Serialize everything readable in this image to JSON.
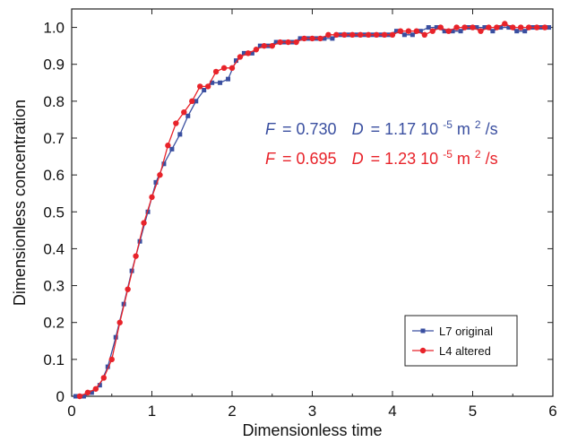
{
  "chart_data": {
    "type": "line",
    "xlabel": "Dimensionless time",
    "ylabel": "Dimensionless concentration",
    "xlim": [
      0,
      6
    ],
    "ylim": [
      0,
      1.05
    ],
    "xticks": [
      "0",
      "1",
      "2",
      "3",
      "4",
      "5",
      "6"
    ],
    "yticks": [
      "0",
      "0.1",
      "0.2",
      "0.3",
      "0.4",
      "0.5",
      "0.6",
      "0.7",
      "0.8",
      "0.9",
      "1.0"
    ],
    "grid": false,
    "legend_position": "bottom-right",
    "annotations": [
      {
        "F_label": "F",
        "F_value": "= 0.730",
        "D_label": "D",
        "D_value": "= 1.17 10",
        "exponent": "-5",
        "unit_a": " m",
        "unit_exp": "2",
        "unit_b": "/s",
        "color": "#3a4fa0"
      },
      {
        "F_label": "F",
        "F_value": "= 0.695",
        "D_label": "D",
        "D_value": "= 1.23 10",
        "exponent": "-5",
        "unit_a": " m",
        "unit_exp": "2",
        "unit_b": "/s",
        "color": "#e8232a"
      }
    ],
    "series": [
      {
        "name": "L7 original",
        "color": "#3a4fa0",
        "marker": "square",
        "x": [
          0.05,
          0.15,
          0.25,
          0.35,
          0.45,
          0.55,
          0.65,
          0.75,
          0.85,
          0.95,
          1.05,
          1.15,
          1.25,
          1.35,
          1.45,
          1.55,
          1.65,
          1.75,
          1.85,
          1.95,
          2.05,
          2.15,
          2.25,
          2.35,
          2.45,
          2.55,
          2.65,
          2.75,
          2.85,
          2.95,
          3.05,
          3.15,
          3.25,
          3.35,
          3.45,
          3.55,
          3.65,
          3.75,
          3.85,
          3.95,
          4.05,
          4.15,
          4.25,
          4.35,
          4.45,
          4.55,
          4.65,
          4.75,
          4.85,
          4.95,
          5.05,
          5.15,
          5.25,
          5.35,
          5.45,
          5.55,
          5.65,
          5.75,
          5.85,
          5.95
        ],
        "y": [
          0.0,
          0.0,
          0.01,
          0.03,
          0.08,
          0.16,
          0.25,
          0.34,
          0.42,
          0.5,
          0.58,
          0.63,
          0.67,
          0.71,
          0.76,
          0.8,
          0.83,
          0.85,
          0.85,
          0.86,
          0.91,
          0.93,
          0.93,
          0.95,
          0.95,
          0.96,
          0.96,
          0.96,
          0.97,
          0.97,
          0.97,
          0.97,
          0.97,
          0.98,
          0.98,
          0.98,
          0.98,
          0.98,
          0.98,
          0.98,
          0.99,
          0.98,
          0.98,
          0.99,
          1.0,
          1.0,
          0.99,
          0.99,
          0.99,
          1.0,
          1.0,
          1.0,
          0.99,
          1.0,
          1.0,
          0.99,
          0.99,
          1.0,
          1.0,
          1.0
        ]
      },
      {
        "name": "L4 altered",
        "color": "#e8232a",
        "marker": "circle",
        "x": [
          0.1,
          0.2,
          0.3,
          0.4,
          0.5,
          0.6,
          0.7,
          0.8,
          0.9,
          1.0,
          1.1,
          1.2,
          1.3,
          1.4,
          1.5,
          1.6,
          1.7,
          1.8,
          1.9,
          2.0,
          2.1,
          2.2,
          2.3,
          2.4,
          2.5,
          2.6,
          2.7,
          2.8,
          2.9,
          3.0,
          3.1,
          3.2,
          3.3,
          3.4,
          3.5,
          3.6,
          3.7,
          3.8,
          3.9,
          4.0,
          4.1,
          4.2,
          4.3,
          4.4,
          4.5,
          4.6,
          4.7,
          4.8,
          4.9,
          5.0,
          5.1,
          5.2,
          5.3,
          5.4,
          5.5,
          5.6,
          5.7,
          5.8,
          5.9
        ],
        "y": [
          0.0,
          0.01,
          0.02,
          0.05,
          0.1,
          0.2,
          0.29,
          0.38,
          0.47,
          0.54,
          0.6,
          0.68,
          0.74,
          0.77,
          0.8,
          0.84,
          0.84,
          0.88,
          0.89,
          0.89,
          0.92,
          0.93,
          0.94,
          0.95,
          0.95,
          0.96,
          0.96,
          0.96,
          0.97,
          0.97,
          0.97,
          0.98,
          0.98,
          0.98,
          0.98,
          0.98,
          0.98,
          0.98,
          0.98,
          0.98,
          0.99,
          0.99,
          0.99,
          0.98,
          0.99,
          1.0,
          0.99,
          1.0,
          1.0,
          1.0,
          0.99,
          1.0,
          1.0,
          1.01,
          1.0,
          1.0,
          1.0,
          1.0,
          1.0
        ]
      }
    ]
  }
}
